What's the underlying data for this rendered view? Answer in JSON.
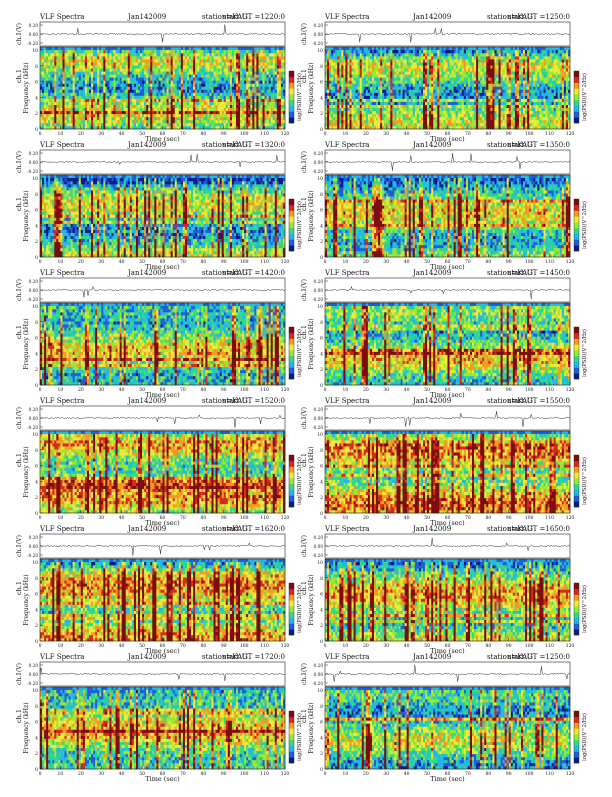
{
  "figure": {
    "instrument": "VLF Spectra",
    "date": "Jan142009",
    "station": "station=KAG",
    "channel_label": "ch.1",
    "timeseries_ylabel": "ch.1(V)",
    "spectrogram_ylabel": "Frequency (kHz)",
    "xlabel": "Time (sec)",
    "colorbar_label": "log(PSD)(V^2/Hz)"
  },
  "colormap": [
    "#0a1a8c",
    "#1e5fd6",
    "#22b8e8",
    "#30d98a",
    "#9be832",
    "#f0e83a",
    "#f59a23",
    "#d42a1e",
    "#7a0d0d"
  ],
  "chart_data": [
    {
      "type": "heatmap",
      "start": "start  UT  =1220:0",
      "xlabel": "Time (sec)",
      "ylabel": "Frequency (kHz)",
      "xlim": [
        0,
        120
      ],
      "ylim": [
        0,
        10
      ],
      "xticks": [
        0,
        10,
        20,
        30,
        40,
        50,
        60,
        70,
        80,
        90,
        100,
        110,
        120
      ],
      "yticks": [
        0,
        2,
        4,
        6,
        8,
        10
      ],
      "timeseries_yticks": [
        "0.20",
        "0.00",
        "-0.20"
      ],
      "intensity": 0.42
    },
    {
      "type": "heatmap",
      "start": "start  UT  =1250:0",
      "xlabel": "Time (sec)",
      "ylabel": "Frequency (kHz)",
      "xlim": [
        0,
        120
      ],
      "ylim": [
        0,
        10
      ],
      "xticks": [
        0,
        10,
        20,
        30,
        40,
        50,
        60,
        70,
        80,
        90,
        100,
        110,
        120
      ],
      "yticks": [
        0,
        2,
        4,
        6,
        8,
        10
      ],
      "timeseries_yticks": [
        "0.20",
        "0.00",
        "-0.20"
      ],
      "intensity": 0.4
    },
    {
      "type": "heatmap",
      "start": "start  UT  =1320:0",
      "xlabel": "Time (sec)",
      "ylabel": "Frequency (kHz)",
      "xlim": [
        0,
        120
      ],
      "ylim": [
        0,
        10
      ],
      "xticks": [
        0,
        10,
        20,
        30,
        40,
        50,
        60,
        70,
        80,
        90,
        100,
        110,
        120
      ],
      "yticks": [
        0,
        2,
        4,
        6,
        8,
        10
      ],
      "timeseries_yticks": [
        "0.20",
        "0.00",
        "-0.20"
      ],
      "intensity": 0.4
    },
    {
      "type": "heatmap",
      "start": "start  UT  =1350:0",
      "xlabel": "Time (sec)",
      "ylabel": "Frequency (kHz)",
      "xlim": [
        0,
        120
      ],
      "ylim": [
        0,
        10
      ],
      "xticks": [
        0,
        10,
        20,
        30,
        40,
        50,
        60,
        70,
        80,
        90,
        100,
        110,
        120
      ],
      "yticks": [
        0,
        2,
        4,
        6,
        8,
        10
      ],
      "timeseries_yticks": [
        "0.20",
        "0.00",
        "-0.20"
      ],
      "intensity": 0.44
    },
    {
      "type": "heatmap",
      "start": "start  UT  =1420:0",
      "xlabel": "Time (sec)",
      "ylabel": "Frequency (kHz)",
      "xlim": [
        0,
        120
      ],
      "ylim": [
        0,
        10
      ],
      "xticks": [
        0,
        10,
        20,
        30,
        40,
        50,
        60,
        70,
        80,
        90,
        100,
        110,
        120
      ],
      "yticks": [
        0,
        2,
        4,
        6,
        8,
        10
      ],
      "timeseries_yticks": [
        "0.20",
        "0.00",
        "-0.20"
      ],
      "intensity": 0.46
    },
    {
      "type": "heatmap",
      "start": "start  UT  =1450:0",
      "xlabel": "Time (sec)",
      "ylabel": "Frequency (kHz)",
      "xlim": [
        0,
        120
      ],
      "ylim": [
        0,
        10
      ],
      "xticks": [
        0,
        10,
        20,
        30,
        40,
        50,
        60,
        70,
        80,
        90,
        100,
        110,
        120
      ],
      "yticks": [
        0,
        2,
        4,
        6,
        8,
        10
      ],
      "timeseries_yticks": [
        "0.20",
        "0.00",
        "-0.20"
      ],
      "intensity": 0.46
    },
    {
      "type": "heatmap",
      "start": "start  UT  =1520:0",
      "xlabel": "Time (sec)",
      "ylabel": "Frequency (kHz)",
      "xlim": [
        0,
        120
      ],
      "ylim": [
        0,
        10
      ],
      "xticks": [
        0,
        10,
        20,
        30,
        40,
        50,
        60,
        70,
        80,
        90,
        100,
        110,
        120
      ],
      "yticks": [
        0,
        2,
        4,
        6,
        8,
        10
      ],
      "timeseries_yticks": [
        "0.20",
        "0.00",
        "-0.20"
      ],
      "intensity": 0.55
    },
    {
      "type": "heatmap",
      "start": "start  UT  =1550:0",
      "xlabel": "Time (sec)",
      "ylabel": "Frequency (kHz)",
      "xlim": [
        0,
        120
      ],
      "ylim": [
        0,
        10
      ],
      "xticks": [
        0,
        10,
        20,
        30,
        40,
        50,
        60,
        70,
        80,
        90,
        100,
        110,
        120
      ],
      "yticks": [
        0,
        2,
        4,
        6,
        8,
        10
      ],
      "timeseries_yticks": [
        "0.20",
        "0.00",
        "-0.20"
      ],
      "intensity": 0.58
    },
    {
      "type": "heatmap",
      "start": "start  UT  =1620:0",
      "xlabel": "Time (sec)",
      "ylabel": "Frequency (kHz)",
      "xlim": [
        0,
        120
      ],
      "ylim": [
        0,
        10
      ],
      "xticks": [
        0,
        10,
        20,
        30,
        40,
        50,
        60,
        70,
        80,
        90,
        100,
        110,
        120
      ],
      "yticks": [
        0,
        2,
        4,
        6,
        8,
        10
      ],
      "timeseries_yticks": [
        "0.20",
        "0.00",
        "-0.20"
      ],
      "intensity": 0.55
    },
    {
      "type": "heatmap",
      "start": "start  UT  =1650:0",
      "xlabel": "Time (sec)",
      "ylabel": "Frequency (kHz)",
      "xlim": [
        0,
        120
      ],
      "ylim": [
        0,
        10
      ],
      "xticks": [
        0,
        10,
        20,
        30,
        40,
        50,
        60,
        70,
        80,
        90,
        100,
        110,
        120
      ],
      "yticks": [
        0,
        2,
        4,
        6,
        8,
        10
      ],
      "timeseries_yticks": [
        "0.20",
        "0.00",
        "-0.20"
      ],
      "intensity": 0.52
    },
    {
      "type": "heatmap",
      "start": "start  UT  =1720:0",
      "xlabel": "Time (sec)",
      "ylabel": "Frequency (kHz)",
      "xlim": [
        0,
        120
      ],
      "ylim": [
        0,
        10
      ],
      "xticks": [
        0,
        10,
        20,
        30,
        40,
        50,
        60,
        70,
        80,
        90,
        100,
        110,
        120
      ],
      "yticks": [
        0,
        2,
        4,
        6,
        8,
        10
      ],
      "timeseries_yticks": [
        "0.20",
        "0.00",
        "-0.20"
      ],
      "intensity": 0.5
    },
    {
      "type": "heatmap",
      "start": "start  UT  =1250:0",
      "xlabel": "Time (sec)",
      "ylabel": "Frequency (kHz)",
      "xlim": [
        0,
        120
      ],
      "ylim": [
        0,
        10
      ],
      "xticks": [
        0,
        10,
        20,
        30,
        40,
        50,
        60,
        70,
        80,
        90,
        100,
        110,
        120
      ],
      "yticks": [
        0,
        2,
        4,
        6,
        8,
        10
      ],
      "timeseries_yticks": [
        "0.20",
        "0.00",
        "-0.20"
      ],
      "intensity": 0.4
    }
  ]
}
